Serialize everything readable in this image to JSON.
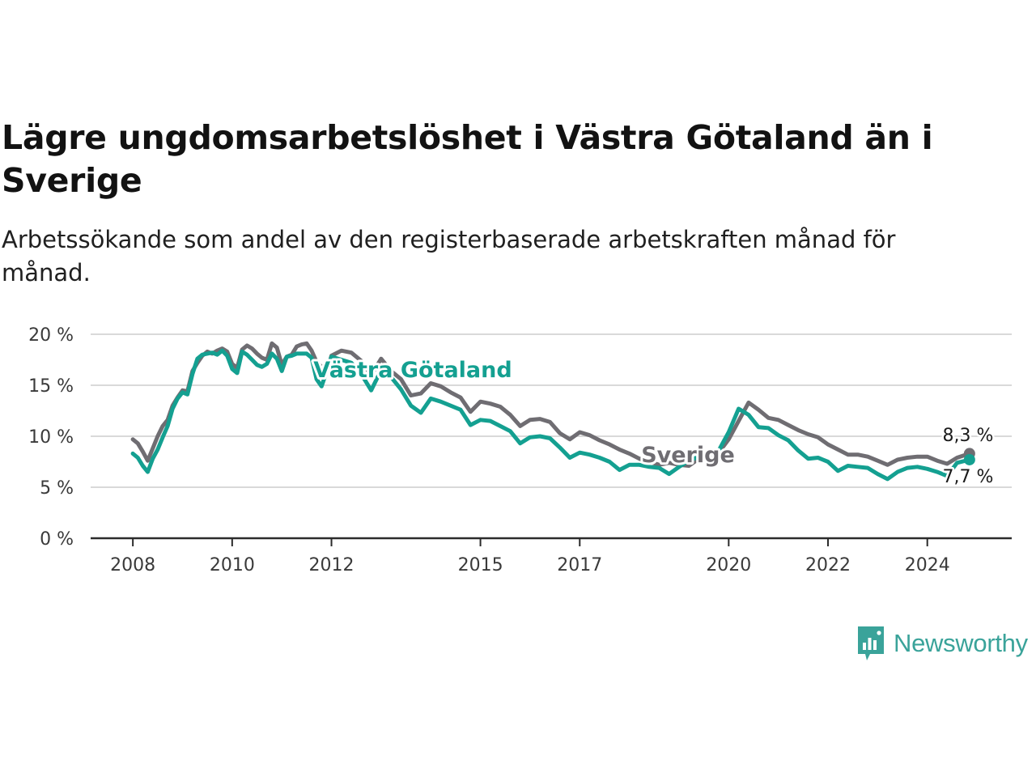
{
  "title": "Lägre ungdomsarbetslöshet i Västra Götaland än i Sverige",
  "subtitle": "Arbetssökande som andel av den registerbaserade arbetskraften månad för månad.",
  "brand": {
    "name": "Newsworthy",
    "icon": "newsworthy-logo-icon"
  },
  "colors": {
    "vastra_gotaland": "#14a091",
    "sverige": "#6f6d72",
    "grid": "#d9d9d9",
    "axis": "#2b2b2b"
  },
  "chart_data": {
    "type": "line",
    "ylim": [
      0,
      20
    ],
    "y_ticks": [
      0,
      5,
      10,
      15,
      20
    ],
    "y_tick_labels": [
      "0 %",
      "5 %",
      "10 %",
      "15 %",
      "20 %"
    ],
    "x_ticks": [
      2008,
      2010,
      2012,
      2015,
      2017,
      2020,
      2022,
      2024
    ],
    "x_tick_labels": [
      "2008",
      "2010",
      "2012",
      "2015",
      "2017",
      "2020",
      "2022",
      "2024"
    ],
    "xlim": [
      2007.15,
      2025.7
    ],
    "grid": true,
    "series": [
      {
        "name": "Sverige",
        "end_label": "8,3 %",
        "x": [
          2008.0,
          2008.1,
          2008.2,
          2008.3,
          2008.4,
          2008.5,
          2008.6,
          2008.7,
          2008.8,
          2008.9,
          2009.0,
          2009.1,
          2009.2,
          2009.3,
          2009.4,
          2009.5,
          2009.6,
          2009.7,
          2009.8,
          2009.9,
          2010.0,
          2010.1,
          2010.2,
          2010.3,
          2010.4,
          2010.5,
          2010.6,
          2010.7,
          2010.8,
          2010.9,
          2011.0,
          2011.1,
          2011.2,
          2011.3,
          2011.4,
          2011.5,
          2011.6,
          2011.7,
          2011.8,
          2011.9,
          2012.0,
          2012.2,
          2012.4,
          2012.6,
          2012.8,
          2013.0,
          2013.2,
          2013.4,
          2013.6,
          2013.8,
          2014.0,
          2014.2,
          2014.4,
          2014.6,
          2014.8,
          2015.0,
          2015.2,
          2015.4,
          2015.6,
          2015.8,
          2016.0,
          2016.2,
          2016.4,
          2016.6,
          2016.8,
          2017.0,
          2017.2,
          2017.4,
          2017.6,
          2017.8,
          2018.0,
          2018.2,
          2018.4,
          2018.6,
          2018.8,
          2019.0,
          2019.2,
          2019.4,
          2019.6,
          2019.8,
          2020.0,
          2020.2,
          2020.4,
          2020.6,
          2020.8,
          2021.0,
          2021.2,
          2021.4,
          2021.6,
          2021.8,
          2022.0,
          2022.2,
          2022.4,
          2022.6,
          2022.8,
          2023.0,
          2023.2,
          2023.4,
          2023.6,
          2023.8,
          2024.0,
          2024.2,
          2024.4,
          2024.6,
          2024.85
        ],
        "y": [
          9.7,
          9.3,
          8.5,
          7.6,
          8.8,
          10.0,
          11.0,
          11.6,
          13.0,
          13.8,
          14.5,
          14.4,
          16.4,
          17.2,
          17.9,
          18.3,
          18.1,
          18.4,
          18.6,
          18.3,
          17.1,
          16.7,
          18.5,
          18.9,
          18.6,
          18.1,
          17.7,
          17.5,
          19.1,
          18.7,
          17.0,
          17.8,
          18.0,
          18.8,
          19.0,
          19.1,
          18.4,
          17.3,
          16.8,
          16.2,
          17.9,
          18.4,
          18.2,
          17.4,
          16.0,
          17.6,
          16.4,
          15.6,
          14.0,
          14.2,
          15.2,
          14.9,
          14.3,
          13.8,
          12.4,
          13.4,
          13.2,
          12.9,
          12.1,
          11.0,
          11.6,
          11.7,
          11.4,
          10.3,
          9.7,
          10.4,
          10.1,
          9.6,
          9.2,
          8.7,
          8.3,
          7.8,
          7.5,
          7.2,
          7.4,
          7.2,
          7.1,
          7.8,
          8.1,
          8.4,
          9.7,
          11.5,
          13.3,
          12.6,
          11.8,
          11.6,
          11.1,
          10.6,
          10.2,
          9.9,
          9.2,
          8.7,
          8.2,
          8.2,
          8.0,
          7.6,
          7.2,
          7.7,
          7.9,
          8.0,
          8.0,
          7.6,
          7.3,
          7.9,
          8.3
        ]
      },
      {
        "name": "Västra Götaland",
        "end_label": "7,7 %",
        "x": [
          2008.0,
          2008.1,
          2008.2,
          2008.3,
          2008.4,
          2008.5,
          2008.6,
          2008.7,
          2008.8,
          2008.9,
          2009.0,
          2009.1,
          2009.2,
          2009.3,
          2009.4,
          2009.5,
          2009.6,
          2009.7,
          2009.8,
          2009.9,
          2010.0,
          2010.1,
          2010.2,
          2010.3,
          2010.4,
          2010.5,
          2010.6,
          2010.7,
          2010.8,
          2010.9,
          2011.0,
          2011.1,
          2011.2,
          2011.3,
          2011.4,
          2011.5,
          2011.6,
          2011.7,
          2011.8,
          2011.9,
          2012.0,
          2012.2,
          2012.4,
          2012.6,
          2012.8,
          2013.0,
          2013.2,
          2013.4,
          2013.6,
          2013.8,
          2014.0,
          2014.2,
          2014.4,
          2014.6,
          2014.8,
          2015.0,
          2015.2,
          2015.4,
          2015.6,
          2015.8,
          2016.0,
          2016.2,
          2016.4,
          2016.6,
          2016.8,
          2017.0,
          2017.2,
          2017.4,
          2017.6,
          2017.8,
          2018.0,
          2018.2,
          2018.4,
          2018.6,
          2018.8,
          2019.0,
          2019.2,
          2019.4,
          2019.6,
          2019.8,
          2020.0,
          2020.2,
          2020.4,
          2020.6,
          2020.8,
          2021.0,
          2021.2,
          2021.4,
          2021.6,
          2021.8,
          2022.0,
          2022.2,
          2022.4,
          2022.6,
          2022.8,
          2023.0,
          2023.2,
          2023.4,
          2023.6,
          2023.8,
          2024.0,
          2024.2,
          2024.4,
          2024.6,
          2024.85
        ],
        "y": [
          8.3,
          7.9,
          7.1,
          6.5,
          7.8,
          8.7,
          9.9,
          11.0,
          12.7,
          13.7,
          14.3,
          14.1,
          16.1,
          17.6,
          18.0,
          18.1,
          18.2,
          18.0,
          18.4,
          17.9,
          16.6,
          16.2,
          18.3,
          18.0,
          17.5,
          17.0,
          16.8,
          17.1,
          18.1,
          17.6,
          16.4,
          17.8,
          17.9,
          18.1,
          18.1,
          18.1,
          17.7,
          15.6,
          14.9,
          16.3,
          17.8,
          17.5,
          17.2,
          16.1,
          14.5,
          16.5,
          15.8,
          14.6,
          13.0,
          12.3,
          13.7,
          13.4,
          13.0,
          12.6,
          11.1,
          11.6,
          11.5,
          11.0,
          10.5,
          9.3,
          9.9,
          10.0,
          9.8,
          8.9,
          7.9,
          8.4,
          8.2,
          7.9,
          7.5,
          6.7,
          7.2,
          7.2,
          7.0,
          6.9,
          6.3,
          7.0,
          7.6,
          8.0,
          8.2,
          8.6,
          10.4,
          12.7,
          12.1,
          10.9,
          10.8,
          10.1,
          9.6,
          8.6,
          7.8,
          7.9,
          7.5,
          6.6,
          7.1,
          7.0,
          6.9,
          6.3,
          5.8,
          6.5,
          6.9,
          7.0,
          6.8,
          6.5,
          6.1,
          7.4,
          7.7
        ]
      }
    ]
  }
}
